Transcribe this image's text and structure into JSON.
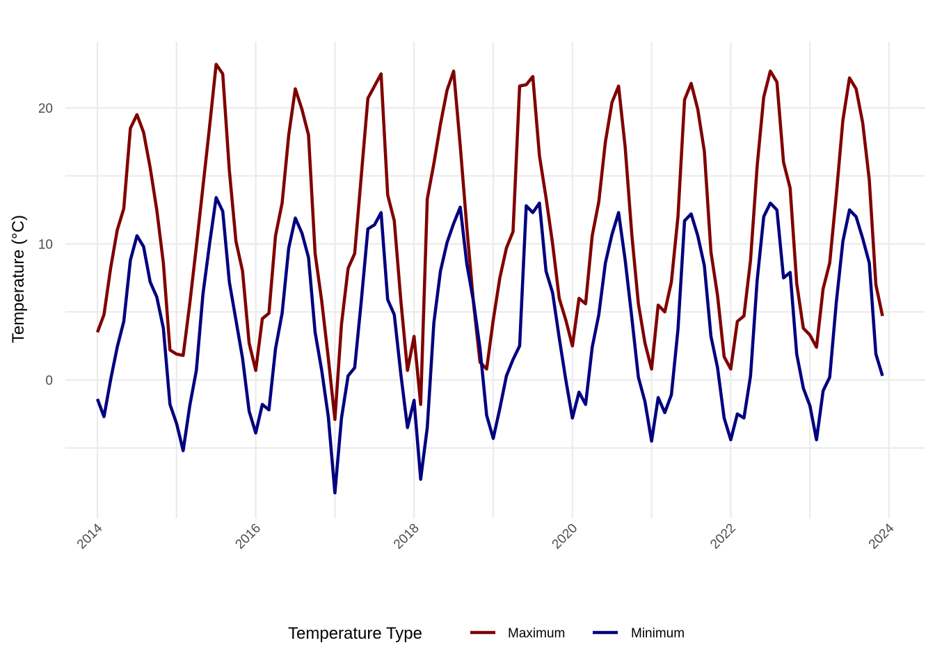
{
  "chart_data": {
    "type": "line",
    "title": "",
    "xlabel": "",
    "ylabel": "Temperature (°C)",
    "x_ticks": [
      "2014",
      "2016",
      "2018",
      "2020",
      "2022",
      "2024"
    ],
    "y_ticks": [
      "0",
      "10",
      "20"
    ],
    "xlim": [
      "2014-01",
      "2024-01"
    ],
    "ylim": [
      -8.5,
      24.5
    ],
    "grid": true,
    "legend": {
      "title": "Temperature Type",
      "position": "bottom"
    },
    "x": [
      "2014-01",
      "2014-02",
      "2014-03",
      "2014-04",
      "2014-05",
      "2014-06",
      "2014-07",
      "2014-08",
      "2014-09",
      "2014-10",
      "2014-11",
      "2014-12",
      "2015-01",
      "2015-02",
      "2015-03",
      "2015-04",
      "2015-05",
      "2015-06",
      "2015-07",
      "2015-08",
      "2015-09",
      "2015-10",
      "2015-11",
      "2015-12",
      "2016-01",
      "2016-02",
      "2016-03",
      "2016-04",
      "2016-05",
      "2016-06",
      "2016-07",
      "2016-08",
      "2016-09",
      "2016-10",
      "2016-11",
      "2016-12",
      "2017-01",
      "2017-02",
      "2017-03",
      "2017-04",
      "2017-05",
      "2017-06",
      "2017-07",
      "2017-08",
      "2017-09",
      "2017-10",
      "2017-11",
      "2017-12",
      "2018-01",
      "2018-02",
      "2018-03",
      "2018-04",
      "2018-05",
      "2018-06",
      "2018-07",
      "2018-08",
      "2018-09",
      "2018-10",
      "2018-11",
      "2018-12",
      "2019-01",
      "2019-02",
      "2019-03",
      "2019-04",
      "2019-05",
      "2019-06",
      "2019-07",
      "2019-08",
      "2019-09",
      "2019-10",
      "2019-11",
      "2019-12",
      "2020-01",
      "2020-02",
      "2020-03",
      "2020-04",
      "2020-05",
      "2020-06",
      "2020-07",
      "2020-08",
      "2020-09",
      "2020-10",
      "2020-11",
      "2020-12",
      "2021-01",
      "2021-02",
      "2021-03",
      "2021-04",
      "2021-05",
      "2021-06",
      "2021-07",
      "2021-08",
      "2021-09",
      "2021-10",
      "2021-11",
      "2021-12",
      "2022-01",
      "2022-02",
      "2022-03",
      "2022-04",
      "2022-05",
      "2022-06",
      "2022-07",
      "2022-08",
      "2022-09",
      "2022-10",
      "2022-11",
      "2022-12",
      "2023-01",
      "2023-02",
      "2023-03",
      "2023-04",
      "2023-05",
      "2023-06",
      "2023-07",
      "2023-08",
      "2023-09",
      "2023-10",
      "2023-11",
      "2023-12"
    ],
    "series": [
      {
        "name": "Maximum",
        "color": "#800000",
        "values": [
          3.5,
          4.8,
          8.2,
          11.0,
          12.6,
          18.5,
          19.5,
          18.2,
          15.6,
          12.5,
          8.6,
          2.2,
          1.9,
          1.8,
          5.6,
          9.8,
          14.2,
          18.6,
          23.2,
          22.5,
          15.4,
          10.2,
          8.0,
          2.7,
          0.7,
          4.5,
          4.9,
          10.6,
          13.0,
          18.0,
          21.4,
          19.9,
          18.0,
          9.3,
          5.8,
          1.6,
          -2.9,
          4.1,
          8.2,
          9.3,
          15.0,
          20.7,
          21.6,
          22.5,
          13.6,
          11.7,
          5.8,
          0.7,
          3.2,
          -1.8,
          13.3,
          15.9,
          18.8,
          21.3,
          22.7,
          17.2,
          11.2,
          5.7,
          1.3,
          0.8,
          4.4,
          7.5,
          9.7,
          10.9,
          21.6,
          21.7,
          22.3,
          16.5,
          13.4,
          10.0,
          6.0,
          4.4,
          2.5,
          6.0,
          5.6,
          10.6,
          13.1,
          17.5,
          20.4,
          21.6,
          17.1,
          10.7,
          5.6,
          2.7,
          0.8,
          5.5,
          5.0,
          7.2,
          12.0,
          20.6,
          21.8,
          19.9,
          16.8,
          9.4,
          6.2,
          1.7,
          0.8,
          4.3,
          4.7,
          8.8,
          15.7,
          20.8,
          22.7,
          21.9,
          16.0,
          14.1,
          7.1,
          3.8,
          3.3,
          2.4,
          6.7,
          8.6,
          13.6,
          19.1,
          22.2,
          21.4,
          18.9,
          14.7,
          7.0,
          4.7
        ]
      },
      {
        "name": "Minimum",
        "color": "#000080",
        "values": [
          -1.4,
          -2.7,
          0.0,
          2.4,
          4.3,
          8.8,
          10.6,
          9.8,
          7.2,
          6.1,
          3.8,
          -1.8,
          -3.2,
          -5.2,
          -1.9,
          0.7,
          6.3,
          10.0,
          13.4,
          12.4,
          7.2,
          4.4,
          1.6,
          -2.3,
          -3.9,
          -1.8,
          -2.2,
          2.3,
          4.9,
          9.7,
          11.9,
          10.8,
          9.0,
          3.5,
          0.7,
          -2.7,
          -8.3,
          -2.8,
          0.3,
          0.9,
          5.8,
          11.1,
          11.4,
          12.3,
          5.9,
          4.8,
          0.4,
          -3.5,
          -1.5,
          -7.3,
          -3.5,
          4.2,
          8.0,
          10.1,
          11.5,
          12.7,
          8.5,
          5.8,
          2.3,
          -2.6,
          -4.3,
          -2.1,
          0.3,
          1.5,
          2.5,
          12.8,
          12.3,
          13.0,
          8.0,
          6.4,
          3.1,
          0.0,
          -2.8,
          -0.9,
          -1.8,
          2.4,
          4.8,
          8.6,
          10.7,
          12.3,
          8.8,
          4.6,
          0.2,
          -1.6,
          -4.5,
          -1.3,
          -2.4,
          -1.1,
          3.7,
          11.7,
          12.2,
          10.6,
          8.4,
          3.2,
          0.9,
          -2.8,
          -4.4,
          -2.5,
          -2.8,
          0.3,
          7.3,
          12.0,
          13.0,
          12.5,
          7.5,
          7.9,
          1.9,
          -0.6,
          -1.9,
          -4.4,
          -0.8,
          0.2,
          5.7,
          10.2,
          12.5,
          12.0,
          10.4,
          8.6,
          1.9,
          0.3
        ]
      }
    ]
  }
}
